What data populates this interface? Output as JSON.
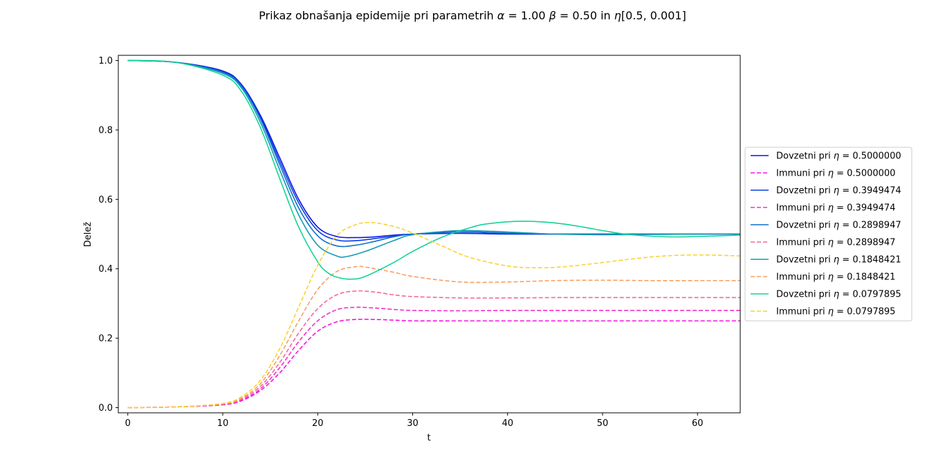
{
  "chart_data": {
    "type": "line",
    "title": {
      "prefix": "Prikaz obnašanja epidemije pri parametrih ",
      "alpha_symbol": "α",
      "alpha_value": " = 1.00 ",
      "beta_symbol": "β",
      "beta_value": " = 0.50",
      "connector": " in ",
      "eta_symbol": "η",
      "eta_range": "[0.5, 0.001]"
    },
    "xlabel": "t",
    "ylabel": "Delež",
    "xlim": [
      -1,
      64.5
    ],
    "ylim": [
      -0.015,
      1.015
    ],
    "xticks": [
      0,
      10,
      20,
      30,
      40,
      50,
      60
    ],
    "yticks": [
      "0.0",
      "0.2",
      "0.4",
      "0.6",
      "0.8",
      "1.0"
    ],
    "grid": false,
    "legend_position": "right",
    "series": [
      {
        "name_prefix": "Dovzetni pri ",
        "eta": "η",
        "name_value": " = 0.5000000",
        "color": "#0a14e6",
        "style": "solid",
        "x": [
          0,
          5,
          10,
          12,
          14,
          16,
          18,
          20,
          22,
          24,
          26,
          28,
          30,
          35,
          40,
          45,
          50,
          55,
          60,
          64.5
        ],
        "y": [
          1.0,
          0.995,
          0.97,
          0.93,
          0.84,
          0.72,
          0.6,
          0.52,
          0.493,
          0.49,
          0.492,
          0.497,
          0.5,
          0.502,
          0.5,
          0.5,
          0.5,
          0.5,
          0.5,
          0.5
        ]
      },
      {
        "name_prefix": "Immuni pri ",
        "eta": "η",
        "name_value": " = 0.5000000",
        "color": "#f514e1",
        "style": "dashed",
        "x": [
          0,
          5,
          10,
          12,
          14,
          16,
          18,
          20,
          22,
          24,
          26,
          28,
          30,
          35,
          40,
          45,
          50,
          55,
          60,
          64.5
        ],
        "y": [
          0.0,
          0.002,
          0.008,
          0.02,
          0.05,
          0.1,
          0.165,
          0.22,
          0.247,
          0.254,
          0.254,
          0.252,
          0.25,
          0.25,
          0.25,
          0.25,
          0.25,
          0.25,
          0.25,
          0.25
        ]
      },
      {
        "name_prefix": "Dovzetni pri ",
        "eta": "η",
        "name_value": " = 0.3949474",
        "color": "#0a3ce1",
        "style": "solid",
        "x": [
          0,
          5,
          10,
          12,
          14,
          16,
          18,
          20,
          22,
          24,
          26,
          28,
          30,
          35,
          40,
          45,
          50,
          55,
          60,
          64.5
        ],
        "y": [
          1.0,
          0.995,
          0.968,
          0.928,
          0.835,
          0.71,
          0.59,
          0.51,
          0.483,
          0.481,
          0.487,
          0.494,
          0.5,
          0.503,
          0.501,
          0.5,
          0.5,
          0.5,
          0.5,
          0.5
        ]
      },
      {
        "name_prefix": "Immuni pri ",
        "eta": "η",
        "name_value": " = 0.3949474",
        "color": "#f52dcd",
        "style": "dashed",
        "x": [
          0,
          5,
          10,
          12,
          14,
          16,
          18,
          20,
          22,
          24,
          26,
          28,
          30,
          35,
          40,
          45,
          50,
          55,
          60,
          64.5
        ],
        "y": [
          0.0,
          0.002,
          0.009,
          0.022,
          0.055,
          0.115,
          0.19,
          0.25,
          0.282,
          0.289,
          0.287,
          0.283,
          0.28,
          0.279,
          0.28,
          0.28,
          0.28,
          0.28,
          0.28,
          0.28
        ]
      },
      {
        "name_prefix": "Dovzetni pri ",
        "eta": "η",
        "name_value": " = 0.2898947",
        "color": "#0f6ecd",
        "style": "solid",
        "x": [
          0,
          5,
          10,
          12,
          14,
          16,
          18,
          20,
          22,
          24,
          26,
          28,
          30,
          35,
          40,
          45,
          50,
          55,
          60,
          64.5
        ],
        "y": [
          1.0,
          0.995,
          0.966,
          0.925,
          0.83,
          0.7,
          0.575,
          0.495,
          0.466,
          0.468,
          0.479,
          0.492,
          0.5,
          0.507,
          0.503,
          0.5,
          0.499,
          0.499,
          0.5,
          0.5
        ]
      },
      {
        "name_prefix": "Immuni pri ",
        "eta": "η",
        "name_value": " = 0.2898947",
        "color": "#f5669f",
        "style": "dashed",
        "x": [
          0,
          5,
          10,
          12,
          14,
          16,
          18,
          20,
          22,
          24,
          26,
          28,
          30,
          35,
          40,
          45,
          50,
          55,
          60,
          64.5
        ],
        "y": [
          0.0,
          0.002,
          0.01,
          0.025,
          0.062,
          0.13,
          0.215,
          0.285,
          0.325,
          0.336,
          0.333,
          0.325,
          0.32,
          0.316,
          0.316,
          0.317,
          0.317,
          0.317,
          0.317,
          0.317
        ]
      },
      {
        "name_prefix": "Dovzetni pri ",
        "eta": "η",
        "name_value": " = 0.1848421",
        "color": "#0f9bb4",
        "style": "solid",
        "x": [
          0,
          5,
          10,
          12,
          14,
          16,
          18,
          20,
          22,
          23,
          25,
          28,
          30,
          35,
          40,
          45,
          50,
          55,
          60,
          64.5
        ],
        "y": [
          1.0,
          0.995,
          0.963,
          0.92,
          0.82,
          0.685,
          0.555,
          0.468,
          0.437,
          0.435,
          0.45,
          0.481,
          0.498,
          0.51,
          0.506,
          0.5,
          0.498,
          0.499,
          0.5,
          0.5
        ]
      },
      {
        "name_prefix": "Immuni pri ",
        "eta": "η",
        "name_value": " = 0.1848421",
        "color": "#fa9e5f",
        "style": "dashed",
        "x": [
          0,
          5,
          10,
          12,
          14,
          16,
          18,
          20,
          22,
          24,
          25,
          28,
          30,
          35,
          40,
          45,
          50,
          55,
          60,
          64.5
        ],
        "y": [
          0.0,
          0.002,
          0.011,
          0.028,
          0.07,
          0.15,
          0.25,
          0.34,
          0.392,
          0.406,
          0.405,
          0.39,
          0.378,
          0.362,
          0.362,
          0.366,
          0.367,
          0.366,
          0.366,
          0.366
        ]
      },
      {
        "name_prefix": "Dovzetni pri ",
        "eta": "η",
        "name_value": " = 0.0797895",
        "color": "#14d296",
        "style": "solid",
        "x": [
          0,
          5,
          10,
          12,
          14,
          16,
          18,
          20,
          21,
          22,
          23.5,
          25,
          28,
          30,
          33,
          36,
          38,
          41.5,
          45,
          48,
          50,
          53,
          57,
          60,
          64.5
        ],
        "y": [
          1.0,
          0.995,
          0.958,
          0.91,
          0.805,
          0.66,
          0.52,
          0.42,
          0.39,
          0.376,
          0.37,
          0.378,
          0.418,
          0.45,
          0.49,
          0.518,
          0.53,
          0.537,
          0.532,
          0.52,
          0.51,
          0.498,
          0.492,
          0.493,
          0.497
        ]
      },
      {
        "name_prefix": "Immuni pri ",
        "eta": "η",
        "name_value": " = 0.0797895",
        "color": "#fad232",
        "style": "dashed",
        "x": [
          0,
          5,
          10,
          12,
          14,
          16,
          18,
          20,
          22,
          24,
          25.7,
          28,
          30,
          33,
          36,
          40,
          43,
          46,
          50,
          53,
          56,
          60,
          64.5
        ],
        "y": [
          0.0,
          0.002,
          0.012,
          0.032,
          0.08,
          0.17,
          0.29,
          0.41,
          0.495,
          0.527,
          0.533,
          0.522,
          0.503,
          0.467,
          0.433,
          0.408,
          0.403,
          0.406,
          0.418,
          0.428,
          0.436,
          0.44,
          0.437
        ]
      }
    ]
  }
}
